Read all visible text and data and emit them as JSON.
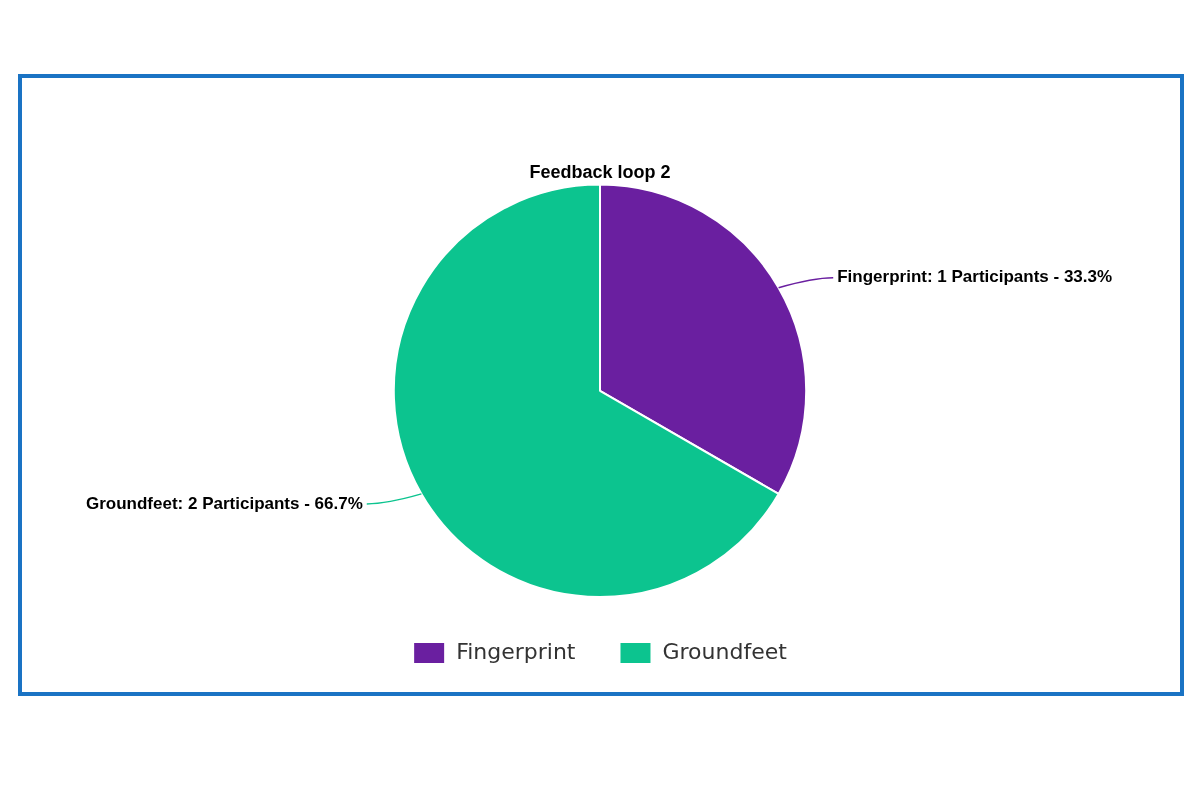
{
  "chart_data": {
    "type": "pie",
    "title": "Feedback loop 2",
    "categories": [
      "Fingerprint",
      "Groundfeet"
    ],
    "values": [
      1,
      2
    ],
    "colors": [
      "#6a1fa0",
      "#0cc48f"
    ],
    "value_labels": [
      "Fingerprint: 1 Participants - 33.3%",
      "Groundfeet: 2 Participants - 66.7%"
    ],
    "legend": "bottom"
  }
}
